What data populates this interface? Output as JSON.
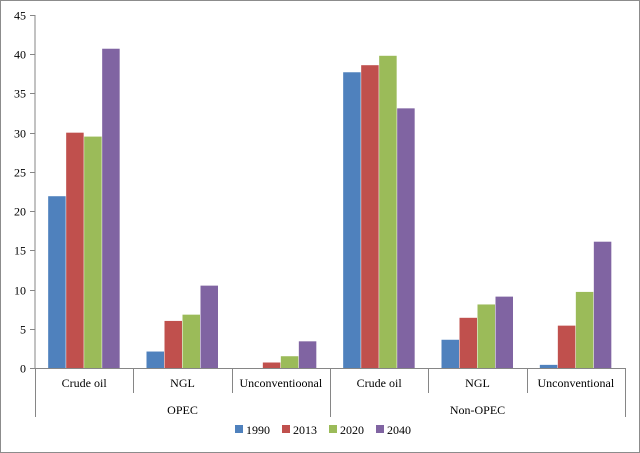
{
  "chart_data": {
    "type": "bar",
    "title": "",
    "xlabel": "",
    "ylabel": "",
    "ylim": [
      0,
      45
    ],
    "yticks": [
      0,
      5,
      10,
      15,
      20,
      25,
      30,
      35,
      40,
      45
    ],
    "grid": false,
    "legend_position": "bottom",
    "groups": [
      {
        "label": "OPEC",
        "categories": [
          "Crude oil",
          "NGL",
          "Unconventioonal"
        ]
      },
      {
        "label": "Non-OPEC",
        "categories": [
          "Crude oil",
          "NGL",
          "Unconventional"
        ]
      }
    ],
    "categories": [
      "Crude oil",
      "NGL",
      "Unconventioonal",
      "Crude oil",
      "NGL",
      "Unconventional"
    ],
    "series": [
      {
        "name": "1990",
        "color": "#4f81bd",
        "values": [
          21.9,
          2.1,
          0.0,
          37.7,
          3.6,
          0.4
        ]
      },
      {
        "name": "2013",
        "color": "#c0504d",
        "values": [
          30.0,
          6.0,
          0.7,
          38.6,
          6.4,
          5.4
        ]
      },
      {
        "name": "2020",
        "color": "#9bbb59",
        "values": [
          29.5,
          6.8,
          1.5,
          39.8,
          8.1,
          9.7
        ]
      },
      {
        "name": "2040",
        "color": "#8064a2",
        "values": [
          40.7,
          10.5,
          3.4,
          33.1,
          9.1,
          16.1
        ]
      }
    ]
  }
}
